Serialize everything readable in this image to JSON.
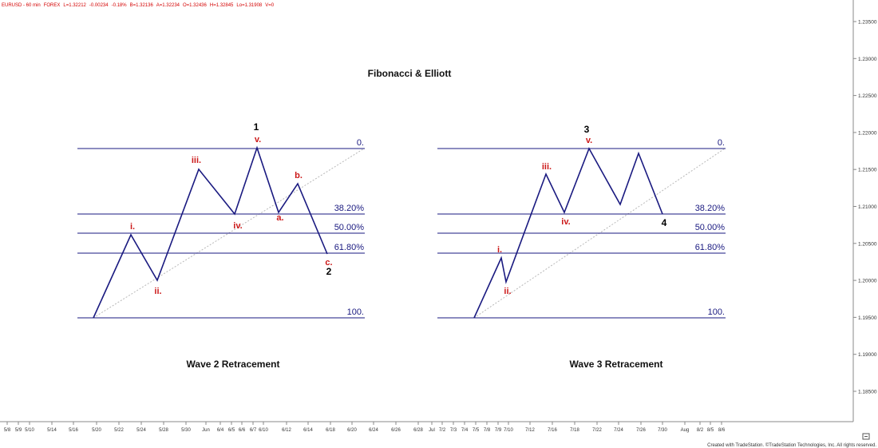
{
  "header": {
    "symbol": "EURUSD - 60 min",
    "market": "FOREX",
    "last": "L=1.32212",
    "change": "-0.00234",
    "pct": "-0.18%",
    "bid": "B=1.32136",
    "ask": "A=1.32234",
    "open": "O=1.32436",
    "high": "H=1.32845",
    "low": "Lo=1.31908",
    "volume": "V=0"
  },
  "price_axis": [
    "1.23500",
    "1.23000",
    "1.22500",
    "1.22000",
    "1.21500",
    "1.21000",
    "1.20500",
    "1.20000",
    "1.19500",
    "1.19000",
    "1.18500"
  ],
  "date_axis": [
    "5/8",
    "5/9",
    "5/10",
    "5/14",
    "5/16",
    "5/20",
    "5/22",
    "5/24",
    "5/28",
    "5/30",
    "Jun",
    "6/4",
    "6/5",
    "6/6",
    "6/7",
    "6/10",
    "6/12",
    "6/14",
    "6/18",
    "6/20",
    "6/24",
    "6/26",
    "6/28",
    "Jul",
    "7/2",
    "7/3",
    "7/4",
    "7/5",
    "7/8",
    "7/9",
    "7/10",
    "7/12",
    "7/16",
    "7/18",
    "7/22",
    "7/24",
    "7/26",
    "7/30",
    "Aug",
    "8/2",
    "8/5",
    "8/6"
  ],
  "title": "Fibonacci & Elliott",
  "panels": [
    {
      "caption": "Wave 2 Retracement",
      "fib_levels": [
        "0.",
        "38.20%",
        "50.00%",
        "61.80%",
        "100."
      ],
      "wave_labels": [
        "i.",
        "ii.",
        "iii.",
        "iv.",
        "v.",
        "a.",
        "b.",
        "c."
      ],
      "degree_labels": [
        "1",
        "2"
      ]
    },
    {
      "caption": "Wave 3 Retracement",
      "fib_levels": [
        "0.",
        "38.20%",
        "50.00%",
        "61.80%",
        "100."
      ],
      "wave_labels": [
        "i.",
        "ii.",
        "iii.",
        "iv.",
        "v."
      ],
      "degree_labels": [
        "3",
        "4"
      ]
    }
  ],
  "footer": {
    "credit": "Created with TradeStation. ©TradeStation Technologies, Inc. All rights reserved."
  },
  "colors": {
    "wave_line": "#1a1a80",
    "fib_line": "#1a1a80",
    "trend_line": "#b0b0b0",
    "wave_label": "#cc1a1a",
    "degree_label": "#000000",
    "header_text": "#d40000"
  },
  "icons": {
    "axis_corner": "expand-box-icon"
  }
}
